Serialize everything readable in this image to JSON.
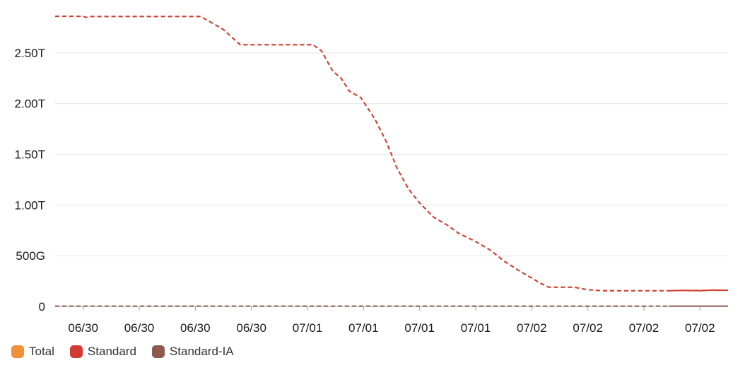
{
  "chart_data": {
    "type": "line",
    "y_ticks": [
      {
        "value": 0,
        "label": "0"
      },
      {
        "value": 500,
        "label": "500G"
      },
      {
        "value": 1000,
        "label": "1.00T"
      },
      {
        "value": 1500,
        "label": "1.50T"
      },
      {
        "value": 2000,
        "label": "2.00T"
      },
      {
        "value": 2500,
        "label": "2.50T"
      }
    ],
    "ylim": [
      0,
      3000
    ],
    "x_ticks": [
      "06/30",
      "06/30",
      "06/30",
      "06/30",
      "07/01",
      "07/01",
      "07/01",
      "07/01",
      "07/02",
      "07/02",
      "07/02",
      "07/02"
    ],
    "x_tick_positions": [
      1,
      3,
      5,
      7,
      9,
      11,
      13,
      15,
      17,
      19,
      21,
      23
    ],
    "xlim": [
      0,
      24
    ],
    "grid": "horizontal",
    "legend": {
      "placement": "bottom-left",
      "items": [
        {
          "label": "Total",
          "color": "#f0913a"
        },
        {
          "label": "Standard",
          "color": "#d13b34"
        },
        {
          "label": "Standard-IA",
          "color": "#8c5a4e"
        }
      ]
    },
    "series": [
      {
        "key": "total",
        "color": "#f0913a",
        "style": "dashed",
        "points": [
          [
            0,
            2860
          ],
          [
            1,
            2860
          ],
          [
            1.1,
            2850
          ],
          [
            1.3,
            2858
          ],
          [
            5,
            2858
          ],
          [
            5.2,
            2858
          ],
          [
            6,
            2730
          ],
          [
            6.6,
            2580
          ],
          [
            9.2,
            2580
          ],
          [
            9.5,
            2520
          ],
          [
            9.9,
            2320
          ],
          [
            10.2,
            2250
          ],
          [
            10.5,
            2120
          ],
          [
            10.9,
            2060
          ],
          [
            11.4,
            1850
          ],
          [
            11.8,
            1630
          ],
          [
            12.2,
            1360
          ],
          [
            12.6,
            1160
          ],
          [
            13,
            1020
          ],
          [
            13.5,
            880
          ],
          [
            14,
            800
          ],
          [
            14.4,
            720
          ],
          [
            15,
            640
          ],
          [
            15.5,
            560
          ],
          [
            16,
            450
          ],
          [
            16.5,
            360
          ],
          [
            17,
            280
          ],
          [
            17.3,
            230
          ],
          [
            17.6,
            190
          ],
          [
            18.5,
            190
          ],
          [
            19,
            165
          ],
          [
            19.5,
            155
          ],
          [
            21.9,
            155
          ],
          [
            22.3,
            158
          ],
          [
            22.6,
            155
          ],
          [
            23.3,
            162
          ],
          [
            23.6,
            158
          ],
          [
            24,
            162
          ]
        ]
      },
      {
        "key": "standard",
        "color": "#d13b34",
        "style": "dashed",
        "points": [
          [
            0,
            2860
          ],
          [
            1,
            2860
          ],
          [
            1.1,
            2850
          ],
          [
            1.3,
            2858
          ],
          [
            5,
            2858
          ],
          [
            5.2,
            2858
          ],
          [
            6,
            2730
          ],
          [
            6.6,
            2580
          ],
          [
            9.2,
            2580
          ],
          [
            9.5,
            2520
          ],
          [
            9.9,
            2320
          ],
          [
            10.2,
            2250
          ],
          [
            10.5,
            2120
          ],
          [
            10.9,
            2060
          ],
          [
            11.4,
            1850
          ],
          [
            11.8,
            1630
          ],
          [
            12.2,
            1360
          ],
          [
            12.6,
            1160
          ],
          [
            13,
            1020
          ],
          [
            13.5,
            880
          ],
          [
            14,
            800
          ],
          [
            14.4,
            720
          ],
          [
            15,
            640
          ],
          [
            15.5,
            560
          ],
          [
            16,
            450
          ],
          [
            16.5,
            360
          ],
          [
            17,
            280
          ],
          [
            17.3,
            230
          ],
          [
            17.6,
            190
          ],
          [
            18.5,
            190
          ],
          [
            19,
            165
          ],
          [
            19.5,
            155
          ],
          [
            21.9,
            155
          ]
        ]
      },
      {
        "key": "standard-solid",
        "color": "#d13b34",
        "style": "solid",
        "points": [
          [
            21.9,
            155
          ],
          [
            22.5,
            158
          ],
          [
            23,
            155
          ],
          [
            23.5,
            162
          ],
          [
            24,
            158
          ]
        ]
      },
      {
        "key": "standard-ia",
        "color": "#8c5a4e",
        "style": "dashed",
        "points": [
          [
            0,
            3
          ],
          [
            21.9,
            3
          ]
        ]
      },
      {
        "key": "standard-ia-solid",
        "color": "#8c5a4e",
        "style": "solid",
        "points": [
          [
            21.9,
            3
          ],
          [
            24,
            3
          ]
        ]
      }
    ]
  }
}
